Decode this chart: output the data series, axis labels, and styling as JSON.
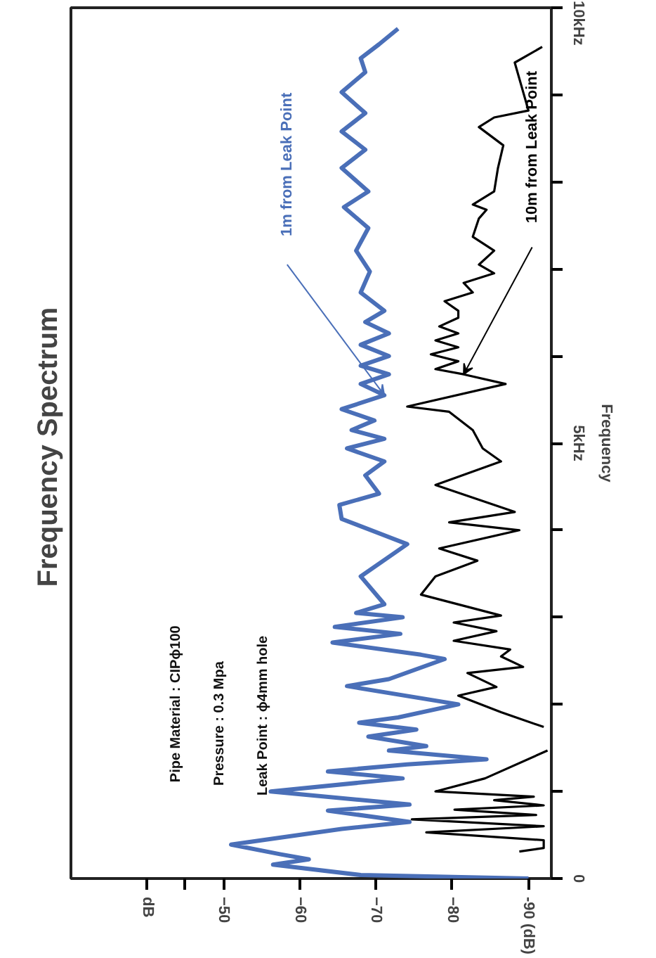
{
  "chart_data": {
    "type": "line",
    "orientation": "horizontal",
    "title": "Frequency  Spectrum",
    "ylabel": "Frequency",
    "annotations": [
      "Pipe Material  :  CIPϕ100",
      "Pressure           :  0.3  Mpa",
      "Leak Point       :  ϕ4mm  hole"
    ],
    "xlim": [
      -30,
      -93
    ],
    "xticks": [
      {
        "value": -40,
        "label": "dB"
      },
      {
        "value": -45,
        "label": null
      },
      -50,
      -60,
      -70,
      -80,
      {
        "value": -90,
        "label": "-90 (dB)"
      }
    ],
    "ylim": [
      0,
      10
    ],
    "yticks": [
      0,
      {
        "value": 1,
        "label": null
      },
      {
        "value": 2,
        "label": null
      },
      {
        "value": 3,
        "label": null
      },
      {
        "value": 4,
        "label": null
      },
      {
        "value": 5,
        "label": "5kHz"
      },
      {
        "value": 6,
        "label": null
      },
      {
        "value": 7,
        "label": null
      },
      {
        "value": 8,
        "label": null
      },
      {
        "value": 9,
        "label": null
      },
      {
        "value": 10,
        "label": "10kHz"
      }
    ],
    "grid": false,
    "series": [
      {
        "name": "1m from Leak Point",
        "color": "#4a6fb8",
        "x": [
          0,
          0.04,
          0.16,
          0.22,
          0.28,
          0.39,
          0.57,
          0.65,
          0.78,
          0.85,
          1.0,
          1.15,
          1.23,
          1.31,
          1.37,
          1.47,
          1.52,
          1.63,
          1.71,
          1.79,
          1.85,
          2.0,
          2.21,
          2.29,
          2.52,
          2.57,
          2.71,
          2.81,
          2.89,
          3.0,
          3.05,
          3.15,
          3.47,
          3.84,
          4.13,
          4.29,
          4.42,
          4.63,
          4.79,
          4.94,
          5.05,
          5.15,
          5.26,
          5.39,
          5.55,
          5.68,
          5.79,
          5.89,
          6.0,
          6.13,
          6.26,
          6.39,
          6.52,
          6.73,
          6.97,
          7.21,
          7.47,
          7.71,
          7.89,
          8.16,
          8.37,
          8.58,
          8.79,
          9.03,
          9.26,
          9.42,
          9.58,
          9.76
        ],
        "values": [
          -90,
          -68,
          -56.5,
          -61.2,
          -57.4,
          -51,
          -65.5,
          -74.4,
          -63.7,
          -74.4,
          -56.2,
          -73.5,
          -63.7,
          -74.1,
          -84.5,
          -71.7,
          -76.6,
          -69,
          -75.3,
          -67.8,
          -72.9,
          -80.8,
          -66.2,
          -71.7,
          -79,
          -75.9,
          -64.3,
          -73.2,
          -64.6,
          -73.5,
          -67.4,
          -71.1,
          -68,
          -74.1,
          -65.5,
          -65.2,
          -70.4,
          -68.6,
          -71.1,
          -66.2,
          -71.1,
          -66.8,
          -69.8,
          -65.5,
          -71.1,
          -68,
          -71.7,
          -68,
          -71.7,
          -68,
          -71.7,
          -68.6,
          -71.1,
          -68,
          -69.2,
          -67.4,
          -69,
          -65.8,
          -69,
          -65.5,
          -68.6,
          -65.5,
          -68.6,
          -65.5,
          -68.6,
          -68,
          -70.4,
          -72.9
        ]
      },
      {
        "name": "10m from Leak Point",
        "color": "#000000",
        "x": [
          0.31,
          0.35,
          0.44,
          0.53,
          0.6,
          0.68,
          0.73,
          0.79,
          0.84,
          0.9,
          0.94,
          1.0,
          1.15,
          1.47,
          1.6,
          1.74,
          1.91,
          2.1,
          2.2,
          2.36,
          2.43,
          2.55,
          2.63,
          2.73,
          2.84,
          2.94,
          3.02,
          3.26,
          3.47,
          3.65,
          3.79,
          4.0,
          4.09,
          4.21,
          4.52,
          4.79,
          4.94,
          5.15,
          5.36,
          5.42,
          5.68,
          5.79,
          5.85,
          5.94,
          6.02,
          6.1,
          6.18,
          6.26,
          6.34,
          6.44,
          6.52,
          6.63,
          6.73,
          6.84,
          6.95,
          7.05,
          7.21,
          7.37,
          7.58,
          7.68,
          7.74,
          7.89,
          8.16,
          8.42,
          8.63,
          8.74,
          8.82,
          9.37,
          9.55
        ],
        "values": [
          -88.8,
          -92,
          -92,
          -76.6,
          -92,
          -74.7,
          -91,
          -80.3,
          -92,
          -85.5,
          -90.7,
          -77.8,
          -84.3,
          -92.5,
          null,
          -92,
          -86.4,
          -80.8,
          -85.8,
          -82,
          -89.3,
          -86.4,
          -87.6,
          -80.2,
          -85.8,
          -80.2,
          -86.4,
          -75.9,
          -77.8,
          -83.3,
          -78.3,
          -88.8,
          -79.6,
          -88.2,
          -77.8,
          -86.4,
          -84,
          -82.7,
          -79.6,
          -74.1,
          -87,
          -81.5,
          -77.8,
          -80.8,
          -77.2,
          -80.8,
          -77.8,
          -80.8,
          -78.3,
          -80.8,
          -80.8,
          -79,
          -82.7,
          -81.5,
          -85.5,
          -83.5,
          -85.5,
          -82.7,
          -83.5,
          -84.5,
          -82.7,
          -85.5,
          -86,
          -86.7,
          -83.5,
          -85.5,
          -90,
          -88.2,
          -91.8
        ]
      }
    ]
  }
}
